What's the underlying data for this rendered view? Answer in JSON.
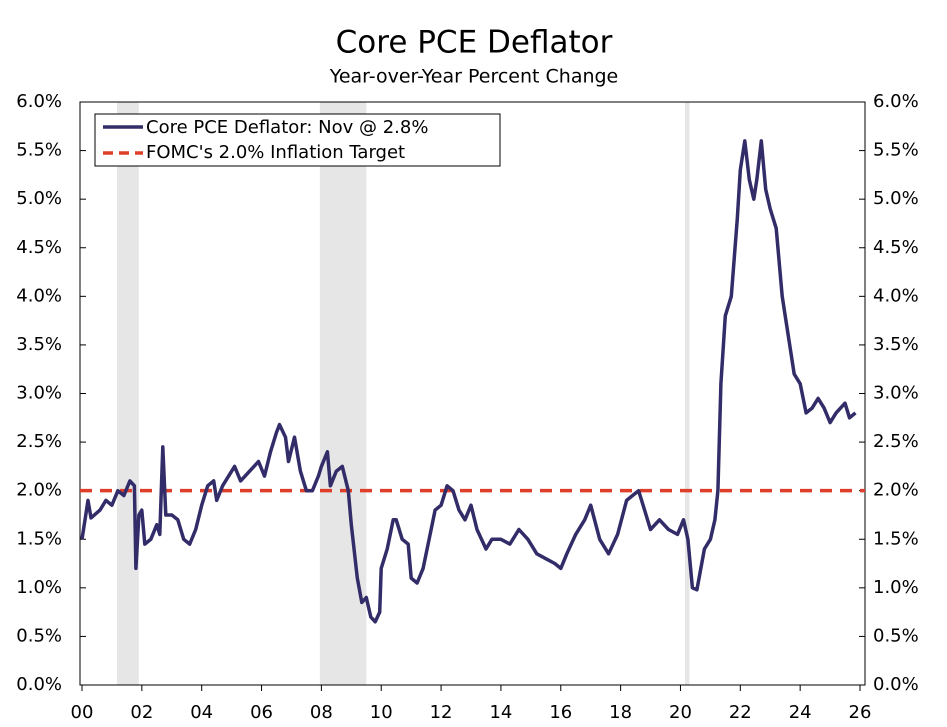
{
  "chart_data": {
    "type": "line",
    "title": "Core PCE Deflator",
    "subtitle": "Year-over-Year Percent Change",
    "x": [
      2000.0,
      2000.2,
      2000.3,
      2000.6,
      2000.8,
      2001.0,
      2001.2,
      2001.4,
      2001.6,
      2001.75,
      2001.8,
      2001.9,
      2002.0,
      2002.1,
      2002.3,
      2002.5,
      2002.6,
      2002.7,
      2002.8,
      2003.0,
      2003.2,
      2003.4,
      2003.6,
      2003.8,
      2004.0,
      2004.2,
      2004.4,
      2004.5,
      2004.7,
      2004.9,
      2005.1,
      2005.3,
      2005.6,
      2005.9,
      2006.1,
      2006.3,
      2006.5,
      2006.6,
      2006.8,
      2006.9,
      2007.1,
      2007.3,
      2007.5,
      2007.7,
      2007.9,
      2008.0,
      2008.2,
      2008.3,
      2008.5,
      2008.7,
      2008.9,
      2009.0,
      2009.2,
      2009.35,
      2009.5,
      2009.65,
      2009.8,
      2009.95,
      2010.0,
      2010.2,
      2010.4,
      2010.5,
      2010.7,
      2010.9,
      2011.0,
      2011.2,
      2011.4,
      2011.6,
      2011.8,
      2012.0,
      2012.2,
      2012.4,
      2012.6,
      2012.8,
      2013.0,
      2013.2,
      2013.5,
      2013.7,
      2014.0,
      2014.3,
      2014.6,
      2014.9,
      2015.2,
      2015.5,
      2015.8,
      2016.0,
      2016.2,
      2016.5,
      2016.8,
      2017.0,
      2017.3,
      2017.6,
      2017.9,
      2018.2,
      2018.4,
      2018.6,
      2018.8,
      2019.0,
      2019.3,
      2019.6,
      2019.9,
      2020.1,
      2020.25,
      2020.4,
      2020.55,
      2020.8,
      2021.0,
      2021.15,
      2021.25,
      2021.35,
      2021.5,
      2021.7,
      2021.9,
      2022.0,
      2022.15,
      2022.3,
      2022.45,
      2022.55,
      2022.7,
      2022.85,
      2023.0,
      2023.2,
      2023.4,
      2023.6,
      2023.8,
      2024.0,
      2024.2,
      2024.4,
      2024.6,
      2024.8,
      2025.0,
      2025.2,
      2025.5,
      2025.65,
      2025.85
    ],
    "series": [
      {
        "name": "Core PCE Deflator: Nov @ 2.8%",
        "color": "#322c68",
        "values": [
          1.5,
          1.9,
          1.72,
          1.8,
          1.9,
          1.85,
          2.0,
          1.95,
          2.1,
          2.05,
          1.2,
          1.75,
          1.8,
          1.45,
          1.5,
          1.65,
          1.55,
          2.45,
          1.75,
          1.75,
          1.7,
          1.5,
          1.45,
          1.6,
          1.85,
          2.05,
          2.1,
          1.9,
          2.05,
          2.15,
          2.25,
          2.1,
          2.2,
          2.3,
          2.15,
          2.4,
          2.6,
          2.68,
          2.55,
          2.3,
          2.55,
          2.2,
          2.0,
          2.0,
          2.15,
          2.25,
          2.4,
          2.05,
          2.2,
          2.25,
          2.0,
          1.65,
          1.1,
          0.85,
          0.9,
          0.7,
          0.65,
          0.75,
          1.2,
          1.4,
          1.7,
          1.7,
          1.5,
          1.45,
          1.1,
          1.05,
          1.2,
          1.5,
          1.8,
          1.85,
          2.05,
          2.0,
          1.8,
          1.7,
          1.85,
          1.6,
          1.4,
          1.5,
          1.5,
          1.45,
          1.6,
          1.5,
          1.35,
          1.3,
          1.25,
          1.2,
          1.35,
          1.55,
          1.7,
          1.85,
          1.5,
          1.35,
          1.55,
          1.9,
          1.95,
          2.0,
          1.8,
          1.6,
          1.7,
          1.6,
          1.55,
          1.7,
          1.5,
          1.0,
          0.98,
          1.4,
          1.5,
          1.7,
          2.0,
          3.1,
          3.8,
          4.0,
          4.8,
          5.3,
          5.6,
          5.2,
          5.0,
          5.2,
          5.6,
          5.1,
          4.9,
          4.7,
          4.0,
          3.6,
          3.2,
          3.1,
          2.8,
          2.85,
          2.95,
          2.85,
          2.7,
          2.8,
          2.9,
          2.75,
          2.8
        ]
      }
    ],
    "reference_line": {
      "name": "FOMC's 2.0% Inflation Target",
      "value": 2.0,
      "color": "#dd3f2a"
    },
    "recessions": [
      [
        2001.17,
        2001.9
      ],
      [
        2007.95,
        2009.5
      ],
      [
        2020.15,
        2020.3
      ]
    ],
    "xlim": [
      2000,
      2026
    ],
    "xticks": [
      {
        "value": 2000,
        "label": "00"
      },
      {
        "value": 2002,
        "label": "02"
      },
      {
        "value": 2004,
        "label": "04"
      },
      {
        "value": 2006,
        "label": "06"
      },
      {
        "value": 2008,
        "label": "08"
      },
      {
        "value": 2010,
        "label": "10"
      },
      {
        "value": 2012,
        "label": "12"
      },
      {
        "value": 2014,
        "label": "14"
      },
      {
        "value": 2016,
        "label": "16"
      },
      {
        "value": 2018,
        "label": "18"
      },
      {
        "value": 2020,
        "label": "20"
      },
      {
        "value": 2022,
        "label": "22"
      },
      {
        "value": 2024,
        "label": "24"
      },
      {
        "value": 2026,
        "label": "26"
      }
    ],
    "ylim": [
      0,
      6
    ],
    "yticks": [
      {
        "value": 0,
        "label": "0.0%"
      },
      {
        "value": 0.5,
        "label": "0.5%"
      },
      {
        "value": 1,
        "label": "1.0%"
      },
      {
        "value": 1.5,
        "label": "1.5%"
      },
      {
        "value": 2,
        "label": "2.0%"
      },
      {
        "value": 2.5,
        "label": "2.5%"
      },
      {
        "value": 3,
        "label": "3.0%"
      },
      {
        "value": 3.5,
        "label": "3.5%"
      },
      {
        "value": 4,
        "label": "4.0%"
      },
      {
        "value": 4.5,
        "label": "4.5%"
      },
      {
        "value": 5,
        "label": "5.0%"
      },
      {
        "value": 5.5,
        "label": "5.5%"
      },
      {
        "value": 6,
        "label": "6.0%"
      }
    ],
    "legend": "upper left"
  }
}
